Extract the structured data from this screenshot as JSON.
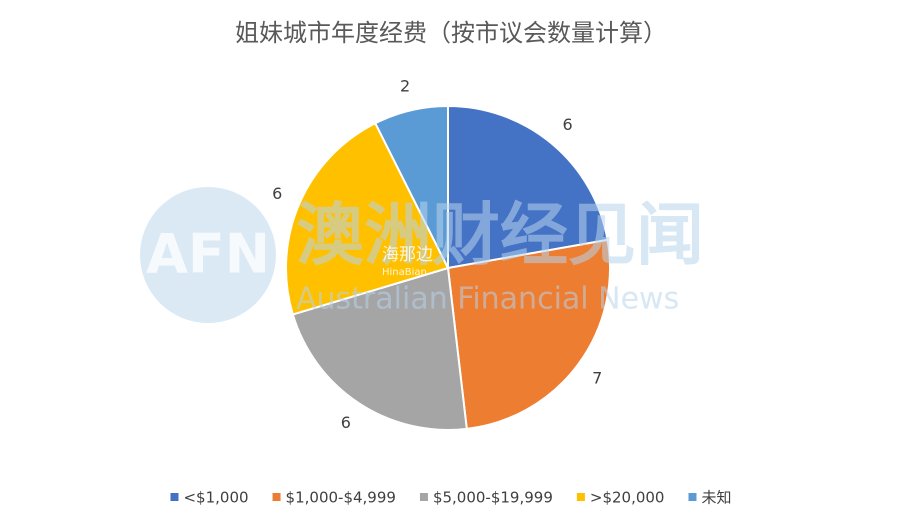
{
  "chart_data": {
    "type": "pie",
    "title": "姐妹城市年度经费（按市议会数量计算）",
    "categories": [
      "<$1,000",
      "$1,000-$4,999",
      "$5,000-$19,999",
      ">$20,000",
      "未知"
    ],
    "values": [
      6,
      7,
      6,
      6,
      2
    ],
    "colors": [
      "#4472c4",
      "#ed7d31",
      "#a5a5a5",
      "#ffc000",
      "#5b9bd5"
    ],
    "legend": "bottom"
  },
  "watermark": {
    "logo": "AFN",
    "name": "澳洲财经见闻",
    "english": "Australian Financial News",
    "secondary": "海那边",
    "secondary_en": "HinaBian"
  }
}
